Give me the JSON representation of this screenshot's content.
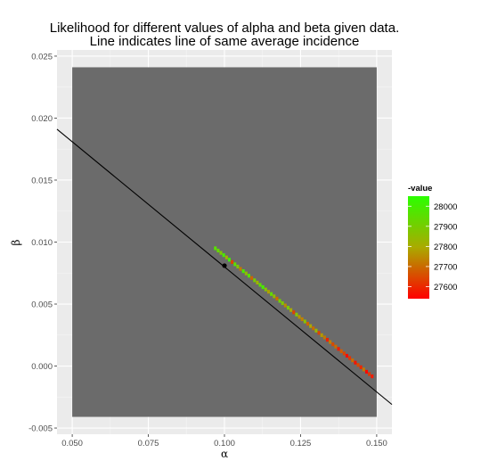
{
  "chart_data": {
    "type": "heatmap",
    "title_lines": [
      "Likelihood for different values of alpha and beta given data.",
      "Line indicates line of same average incidence"
    ],
    "xlabel": "α",
    "ylabel": "β",
    "xlim": [
      0.045,
      0.155
    ],
    "ylim": [
      -0.0055,
      0.0255
    ],
    "x_ticks": [
      0.05,
      0.075,
      0.1,
      0.125,
      0.15
    ],
    "x_tick_labels": [
      "0.050",
      "0.075",
      "0.100",
      "0.125",
      "0.150"
    ],
    "y_ticks": [
      -0.005,
      0,
      0.005,
      0.01,
      0.015,
      0.02,
      0.025
    ],
    "y_tick_labels": [
      "-0.005",
      "0.000",
      "0.005",
      "0.010",
      "0.015",
      "0.020",
      "0.025"
    ],
    "grid": true,
    "background_region": {
      "x": [
        0.05,
        0.15
      ],
      "y": [
        -0.0041,
        0.0241
      ],
      "color": "#6b6b6b"
    },
    "reference_line": {
      "x": [
        0.045,
        0.155
      ],
      "y": [
        0.0191,
        -0.0031
      ],
      "color": "#000000"
    },
    "point": {
      "x": 0.1,
      "y": 0.0081,
      "color": "#000000"
    },
    "band": {
      "x_start": 0.097,
      "x_end": 0.1485,
      "cell_dx": 0.0009,
      "y_at_x_start": 0.0095,
      "slope": -0.2006,
      "cell_dy": 0.0003,
      "values": [
        27960,
        27930,
        27880,
        27990,
        27820,
        28010,
        27640,
        27950,
        27880,
        27720,
        27990,
        27850,
        27960,
        27690,
        27900,
        27820,
        27950,
        28000,
        27870,
        27780,
        27940,
        27850,
        27700,
        27910,
        27880,
        27750,
        27890,
        27800,
        27640,
        27870,
        27760,
        27730,
        27860,
        27690,
        27790,
        27700,
        27830,
        27640,
        27770,
        27720,
        27590,
        27730,
        27650,
        27700,
        27580,
        27680,
        27640,
        27560,
        27620,
        27700,
        27570,
        27650,
        27600,
        27720,
        27550,
        27620,
        27580
      ]
    },
    "legend": {
      "title": "-value",
      "position": "right",
      "min": 27540,
      "max": 28050,
      "low_color": "#ff0000",
      "mid_color": "#aaaa00",
      "high_color": "#2bff00",
      "tick_values": [
        28000,
        27900,
        27800,
        27700,
        27600
      ],
      "tick_labels": [
        "28000",
        "27900",
        "27800",
        "27700",
        "27600"
      ]
    }
  }
}
